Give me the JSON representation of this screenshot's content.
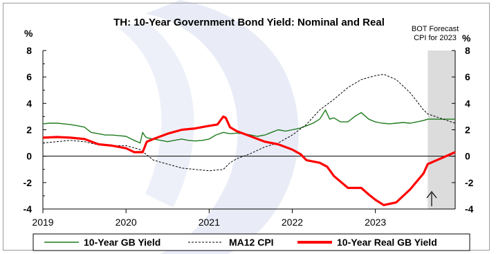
{
  "colors": {
    "nominal": "#1e7b1e",
    "cpi": "#000000",
    "real": "#ff0000",
    "forecast_band": "#dcdcdc",
    "watermark": "#e6eaf6"
  },
  "chart_data": {
    "type": "line",
    "title": "TH: 10-Year Government Bond Yield: Nominal and Real",
    "ylabel_left": "%",
    "ylabel_right": "%",
    "xlim": [
      2019.0,
      2023.96
    ],
    "ylim": [
      -4,
      8
    ],
    "y_ticks": [
      "8",
      "6",
      "4",
      "2",
      "0",
      "-2",
      "-4"
    ],
    "x_ticks": [
      "2019",
      "2020",
      "2021",
      "2022",
      "2023"
    ],
    "grid": false,
    "legend_position": "bottom",
    "forecast_region": {
      "start": 2023.63,
      "end": 2023.96
    },
    "annotation": {
      "lines": [
        "BOT Forecast",
        "CPI for 2023"
      ],
      "x": 2023.63,
      "arrow": "up"
    },
    "series": [
      {
        "name": "10-Year GB Yield",
        "key": "nominal",
        "x": [
          2019.0,
          2019.08,
          2019.17,
          2019.25,
          2019.33,
          2019.42,
          2019.5,
          2019.58,
          2019.67,
          2019.75,
          2019.83,
          2019.92,
          2020.0,
          2020.08,
          2020.17,
          2020.2,
          2020.23,
          2020.25,
          2020.33,
          2020.42,
          2020.5,
          2020.58,
          2020.67,
          2020.75,
          2020.83,
          2020.92,
          2021.0,
          2021.08,
          2021.17,
          2021.25,
          2021.33,
          2021.42,
          2021.5,
          2021.58,
          2021.67,
          2021.75,
          2021.83,
          2021.92,
          2022.0,
          2022.08,
          2022.17,
          2022.25,
          2022.33,
          2022.4,
          2022.45,
          2022.5,
          2022.58,
          2022.67,
          2022.75,
          2022.83,
          2022.92,
          2023.0,
          2023.08,
          2023.17,
          2023.25,
          2023.33,
          2023.42,
          2023.5,
          2023.58,
          2023.63,
          2023.96
        ],
        "y": [
          2.45,
          2.5,
          2.5,
          2.45,
          2.4,
          2.3,
          2.2,
          1.8,
          1.7,
          1.6,
          1.6,
          1.55,
          1.5,
          1.25,
          1.0,
          1.8,
          1.5,
          1.4,
          1.3,
          1.2,
          1.1,
          1.2,
          1.3,
          1.2,
          1.15,
          1.2,
          1.3,
          1.6,
          1.8,
          1.7,
          1.75,
          1.7,
          1.6,
          1.5,
          1.6,
          1.8,
          2.0,
          1.9,
          2.0,
          2.1,
          2.3,
          2.5,
          2.8,
          3.5,
          2.8,
          2.9,
          2.6,
          2.6,
          3.0,
          3.3,
          2.8,
          2.6,
          2.5,
          2.45,
          2.5,
          2.55,
          2.5,
          2.6,
          2.7,
          2.8,
          2.8
        ]
      },
      {
        "name": "MA12 CPI",
        "key": "cpi",
        "x": [
          2019.0,
          2019.17,
          2019.33,
          2019.5,
          2019.67,
          2019.83,
          2020.0,
          2020.17,
          2020.33,
          2020.5,
          2020.67,
          2020.83,
          2021.0,
          2021.17,
          2021.25,
          2021.33,
          2021.5,
          2021.67,
          2021.83,
          2022.0,
          2022.17,
          2022.33,
          2022.5,
          2022.67,
          2022.83,
          2023.0,
          2023.1,
          2023.25,
          2023.42,
          2023.58,
          2023.63,
          2023.96
        ],
        "y": [
          1.0,
          1.1,
          1.2,
          1.1,
          0.85,
          0.8,
          0.8,
          0.5,
          -0.3,
          -0.6,
          -0.9,
          -1.0,
          -1.1,
          -1.0,
          -0.5,
          -0.2,
          0.2,
          0.7,
          1.0,
          1.6,
          2.4,
          3.5,
          4.3,
          5.2,
          5.8,
          6.1,
          6.2,
          5.8,
          4.8,
          3.5,
          3.2,
          2.5
        ]
      },
      {
        "name": "10-Year Real GB Yield",
        "key": "real",
        "x": [
          2019.0,
          2019.17,
          2019.33,
          2019.5,
          2019.67,
          2019.83,
          2020.0,
          2020.1,
          2020.2,
          2020.25,
          2020.33,
          2020.5,
          2020.67,
          2020.83,
          2021.0,
          2021.1,
          2021.17,
          2021.2,
          2021.25,
          2021.33,
          2021.5,
          2021.67,
          2021.83,
          2022.0,
          2022.1,
          2022.17,
          2022.33,
          2022.42,
          2022.5,
          2022.67,
          2022.83,
          2022.92,
          2023.0,
          2023.1,
          2023.25,
          2023.42,
          2023.58,
          2023.63,
          2023.96
        ],
        "y": [
          1.4,
          1.45,
          1.4,
          1.3,
          0.9,
          0.8,
          0.6,
          0.3,
          0.3,
          1.1,
          1.3,
          1.7,
          2.0,
          2.1,
          2.3,
          2.4,
          3.0,
          2.9,
          2.2,
          1.9,
          1.5,
          1.1,
          0.9,
          0.5,
          0.15,
          -0.3,
          -0.5,
          -0.8,
          -1.5,
          -2.4,
          -2.4,
          -2.9,
          -3.3,
          -3.7,
          -3.5,
          -2.5,
          -1.3,
          -0.6,
          0.3
        ]
      }
    ]
  }
}
